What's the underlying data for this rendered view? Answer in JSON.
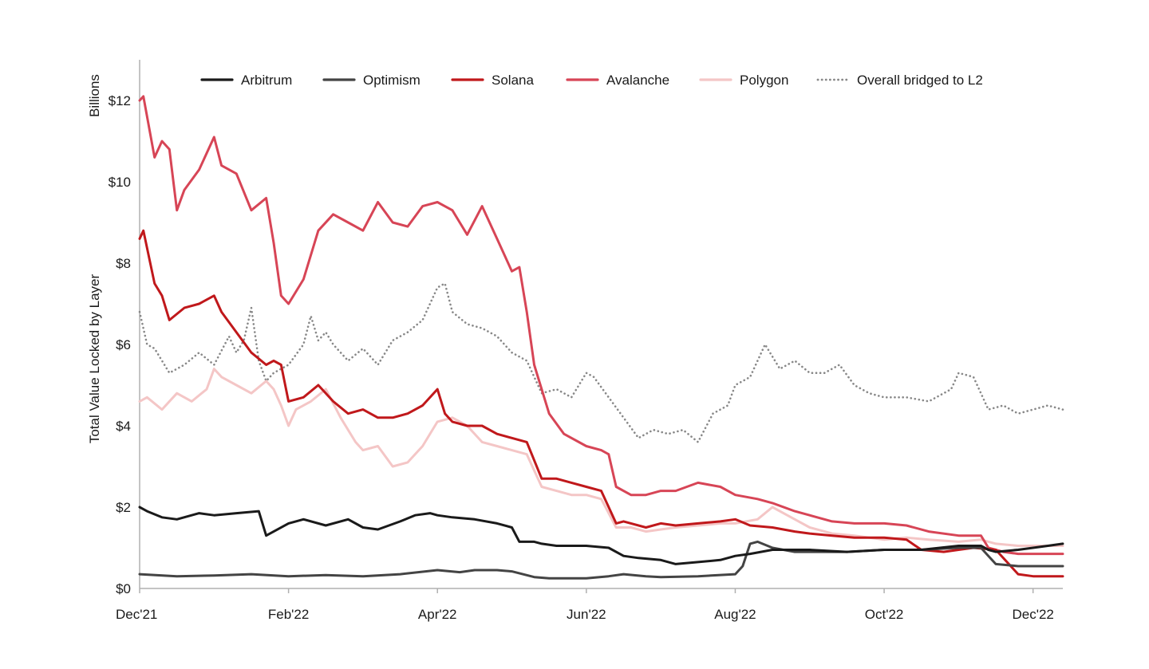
{
  "chart_data": {
    "type": "line",
    "title": "",
    "ylabel": "Total Value Locked by Layer",
    "yunit_label": "Billions",
    "xlabel": "",
    "x_ticks": [
      "Dec'21",
      "Feb'22",
      "Apr'22",
      "Jun'22",
      "Aug'22",
      "Oct'22",
      "Dec'22"
    ],
    "x_tick_months": [
      0,
      2,
      4,
      6,
      8,
      10,
      12
    ],
    "x_range_months": [
      0,
      12.4
    ],
    "y_ticks": [
      "$0",
      "$2",
      "$4",
      "$6",
      "$8",
      "$10",
      "$12"
    ],
    "y_tick_values": [
      0,
      2,
      4,
      6,
      8,
      10,
      12
    ],
    "ylim": [
      0,
      13
    ],
    "legend_position": "top",
    "series": [
      {
        "name": "Arbitrum",
        "color": "#1a1a1a",
        "dash": "solid",
        "x": [
          0,
          0.1,
          0.3,
          0.5,
          0.8,
          1.0,
          1.3,
          1.6,
          1.7,
          1.8,
          2.0,
          2.2,
          2.5,
          2.8,
          3.0,
          3.2,
          3.5,
          3.7,
          3.9,
          4.0,
          4.2,
          4.5,
          4.8,
          5.0,
          5.1,
          5.3,
          5.4,
          5.6,
          6.0,
          6.3,
          6.5,
          6.7,
          7.0,
          7.2,
          7.5,
          7.8,
          8.0,
          8.2,
          8.5,
          8.8,
          9.0,
          9.5,
          10.0,
          10.5,
          11.0,
          11.3,
          11.4,
          11.5,
          11.8,
          12.0,
          12.2,
          12.4
        ],
        "values": [
          2.0,
          1.9,
          1.75,
          1.7,
          1.85,
          1.8,
          1.85,
          1.9,
          1.3,
          1.4,
          1.6,
          1.7,
          1.55,
          1.7,
          1.5,
          1.45,
          1.65,
          1.8,
          1.85,
          1.8,
          1.75,
          1.7,
          1.6,
          1.5,
          1.15,
          1.15,
          1.1,
          1.05,
          1.05,
          1.0,
          0.8,
          0.75,
          0.7,
          0.6,
          0.65,
          0.7,
          0.8,
          0.85,
          0.95,
          0.95,
          0.95,
          0.9,
          0.95,
          0.95,
          1.05,
          1.05,
          0.95,
          0.9,
          0.95,
          1.0,
          1.05,
          1.1
        ]
      },
      {
        "name": "Optimism",
        "color": "#444444",
        "dash": "solid",
        "x": [
          0,
          0.5,
          1.0,
          1.5,
          2.0,
          2.5,
          3.0,
          3.5,
          4.0,
          4.3,
          4.5,
          4.8,
          5.0,
          5.3,
          5.5,
          6.0,
          6.3,
          6.5,
          6.8,
          7.0,
          7.5,
          8.0,
          8.1,
          8.2,
          8.3,
          8.5,
          8.8,
          9.0,
          9.5,
          10.0,
          10.5,
          11.0,
          11.3,
          11.4,
          11.5,
          11.8,
          12.0,
          12.4
        ],
        "values": [
          0.35,
          0.3,
          0.32,
          0.35,
          0.3,
          0.33,
          0.3,
          0.35,
          0.45,
          0.4,
          0.45,
          0.45,
          0.42,
          0.28,
          0.25,
          0.25,
          0.3,
          0.35,
          0.3,
          0.28,
          0.3,
          0.35,
          0.55,
          1.1,
          1.15,
          1.0,
          0.9,
          0.9,
          0.9,
          0.95,
          0.95,
          1.0,
          1.0,
          0.8,
          0.6,
          0.55,
          0.55,
          0.55
        ]
      },
      {
        "name": "Solana",
        "color": "#c0181b",
        "dash": "solid",
        "x": [
          0,
          0.05,
          0.2,
          0.3,
          0.4,
          0.6,
          0.8,
          1.0,
          1.1,
          1.3,
          1.5,
          1.7,
          1.8,
          1.9,
          2.0,
          2.2,
          2.4,
          2.6,
          2.8,
          3.0,
          3.2,
          3.4,
          3.6,
          3.8,
          4.0,
          4.1,
          4.2,
          4.4,
          4.6,
          4.8,
          5.0,
          5.2,
          5.4,
          5.6,
          5.8,
          6.0,
          6.2,
          6.4,
          6.5,
          6.6,
          6.8,
          7.0,
          7.2,
          7.5,
          7.8,
          8.0,
          8.2,
          8.5,
          8.8,
          9.0,
          9.3,
          9.6,
          10.0,
          10.3,
          10.5,
          10.8,
          11.0,
          11.2,
          11.5,
          11.8,
          12.0,
          12.4
        ],
        "values": [
          8.6,
          8.8,
          7.5,
          7.2,
          6.6,
          6.9,
          7.0,
          7.2,
          6.8,
          6.3,
          5.8,
          5.5,
          5.6,
          5.5,
          4.6,
          4.7,
          5.0,
          4.6,
          4.3,
          4.4,
          4.2,
          4.2,
          4.3,
          4.5,
          4.9,
          4.3,
          4.1,
          4.0,
          4.0,
          3.8,
          3.7,
          3.6,
          2.7,
          2.7,
          2.6,
          2.5,
          2.4,
          1.6,
          1.65,
          1.6,
          1.5,
          1.6,
          1.55,
          1.6,
          1.65,
          1.7,
          1.55,
          1.5,
          1.4,
          1.35,
          1.3,
          1.25,
          1.25,
          1.2,
          0.95,
          0.9,
          0.95,
          1.0,
          0.95,
          0.35,
          0.3,
          0.3
        ]
      },
      {
        "name": "Avalanche",
        "color": "#d74556",
        "dash": "solid",
        "x": [
          0,
          0.05,
          0.2,
          0.3,
          0.4,
          0.5,
          0.6,
          0.8,
          1.0,
          1.1,
          1.3,
          1.5,
          1.7,
          1.8,
          1.9,
          2.0,
          2.2,
          2.4,
          2.6,
          2.8,
          3.0,
          3.2,
          3.4,
          3.6,
          3.8,
          4.0,
          4.2,
          4.3,
          4.4,
          4.6,
          4.8,
          5.0,
          5.1,
          5.2,
          5.3,
          5.5,
          5.7,
          6.0,
          6.2,
          6.3,
          6.4,
          6.6,
          6.8,
          7.0,
          7.2,
          7.5,
          7.8,
          8.0,
          8.3,
          8.5,
          8.8,
          9.0,
          9.3,
          9.6,
          10.0,
          10.3,
          10.6,
          11.0,
          11.3,
          11.4,
          11.6,
          11.8,
          12.0,
          12.4
        ],
        "values": [
          12.0,
          12.1,
          10.6,
          11.0,
          10.8,
          9.3,
          9.8,
          10.3,
          11.1,
          10.4,
          10.2,
          9.3,
          9.6,
          8.5,
          7.2,
          7.0,
          7.6,
          8.8,
          9.2,
          9.0,
          8.8,
          9.5,
          9.0,
          8.9,
          9.4,
          9.5,
          9.3,
          9.0,
          8.7,
          9.4,
          8.6,
          7.8,
          7.9,
          6.8,
          5.5,
          4.3,
          3.8,
          3.5,
          3.4,
          3.3,
          2.5,
          2.3,
          2.3,
          2.4,
          2.4,
          2.6,
          2.5,
          2.3,
          2.2,
          2.1,
          1.9,
          1.8,
          1.65,
          1.6,
          1.6,
          1.55,
          1.4,
          1.3,
          1.3,
          1.0,
          0.9,
          0.85,
          0.85,
          0.85
        ]
      },
      {
        "name": "Polygon",
        "color": "#f4c6c6",
        "dash": "solid",
        "x": [
          0,
          0.1,
          0.3,
          0.5,
          0.7,
          0.9,
          1.0,
          1.1,
          1.3,
          1.5,
          1.7,
          1.8,
          1.9,
          2.0,
          2.1,
          2.3,
          2.5,
          2.7,
          2.9,
          3.0,
          3.2,
          3.4,
          3.6,
          3.8,
          4.0,
          4.2,
          4.4,
          4.6,
          4.8,
          5.0,
          5.2,
          5.4,
          5.6,
          5.8,
          6.0,
          6.2,
          6.4,
          6.6,
          6.8,
          7.0,
          7.2,
          7.5,
          7.8,
          8.0,
          8.3,
          8.5,
          8.8,
          9.0,
          9.3,
          9.6,
          10.0,
          10.3,
          10.6,
          11.0,
          11.3,
          11.5,
          11.8,
          12.0,
          12.4
        ],
        "values": [
          4.6,
          4.7,
          4.4,
          4.8,
          4.6,
          4.9,
          5.4,
          5.2,
          5.0,
          4.8,
          5.1,
          4.9,
          4.5,
          4.0,
          4.4,
          4.6,
          4.9,
          4.2,
          3.6,
          3.4,
          3.5,
          3.0,
          3.1,
          3.5,
          4.1,
          4.2,
          4.0,
          3.6,
          3.5,
          3.4,
          3.3,
          2.5,
          2.4,
          2.3,
          2.3,
          2.2,
          1.5,
          1.5,
          1.4,
          1.45,
          1.5,
          1.55,
          1.6,
          1.6,
          1.7,
          2.0,
          1.7,
          1.5,
          1.35,
          1.3,
          1.2,
          1.25,
          1.2,
          1.15,
          1.2,
          1.1,
          1.05,
          1.05,
          1.05
        ]
      },
      {
        "name": "Overall bridged to L2",
        "color": "#888888",
        "dash": "dotted",
        "x": [
          0,
          0.1,
          0.2,
          0.3,
          0.4,
          0.5,
          0.6,
          0.8,
          1.0,
          1.2,
          1.3,
          1.4,
          1.5,
          1.6,
          1.7,
          1.8,
          2.0,
          2.2,
          2.3,
          2.4,
          2.5,
          2.6,
          2.8,
          3.0,
          3.2,
          3.4,
          3.6,
          3.8,
          4.0,
          4.1,
          4.2,
          4.4,
          4.6,
          4.8,
          5.0,
          5.2,
          5.4,
          5.6,
          5.8,
          6.0,
          6.1,
          6.3,
          6.5,
          6.7,
          6.9,
          7.1,
          7.3,
          7.5,
          7.7,
          7.9,
          8.0,
          8.2,
          8.4,
          8.6,
          8.8,
          9.0,
          9.2,
          9.4,
          9.6,
          9.8,
          10.0,
          10.3,
          10.6,
          10.9,
          11.0,
          11.2,
          11.4,
          11.6,
          11.8,
          12.0,
          12.2,
          12.4
        ],
        "values": [
          6.8,
          6.0,
          5.9,
          5.6,
          5.3,
          5.4,
          5.5,
          5.8,
          5.5,
          6.2,
          5.8,
          6.1,
          6.9,
          5.6,
          5.1,
          5.3,
          5.5,
          6.0,
          6.7,
          6.1,
          6.3,
          6.0,
          5.6,
          5.9,
          5.5,
          6.1,
          6.3,
          6.6,
          7.4,
          7.5,
          6.8,
          6.5,
          6.4,
          6.2,
          5.8,
          5.6,
          4.8,
          4.9,
          4.7,
          5.3,
          5.2,
          4.7,
          4.2,
          3.7,
          3.9,
          3.8,
          3.9,
          3.6,
          4.3,
          4.5,
          5.0,
          5.2,
          6.0,
          5.4,
          5.6,
          5.3,
          5.3,
          5.5,
          5.0,
          4.8,
          4.7,
          4.7,
          4.6,
          4.9,
          5.3,
          5.2,
          4.4,
          4.5,
          4.3,
          4.4,
          4.5,
          4.4
        ]
      }
    ]
  }
}
